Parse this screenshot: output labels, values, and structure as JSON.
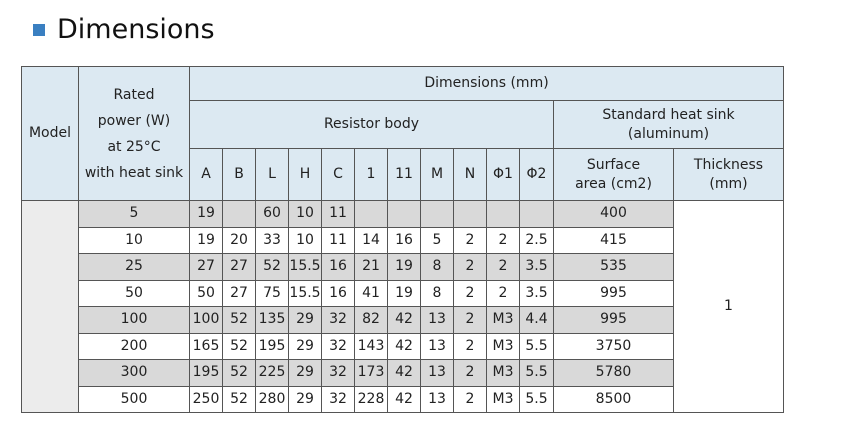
{
  "title": "Dimensions",
  "table": {
    "header": {
      "model": "Model",
      "rated_power": [
        "Rated",
        "power (W)",
        "at 25°C",
        "with heat sink"
      ],
      "dimensions": "Dimensions (mm)",
      "resistor_body": "Resistor body",
      "heat_sink": [
        "Standard heat sink",
        "(aluminum)"
      ],
      "columns": [
        "A",
        "B",
        "L",
        "H",
        "C",
        "1",
        "11",
        "M",
        "N",
        "Φ1",
        "Φ2"
      ],
      "surface_area": [
        "Surface",
        "area (cm2)"
      ],
      "thickness": [
        "Thickness",
        "(mm)"
      ]
    },
    "rows": [
      {
        "power": 5,
        "dims": [
          19,
          null,
          60,
          10,
          11,
          null,
          null,
          null,
          null,
          null,
          null
        ],
        "surface_area": 400
      },
      {
        "power": 10,
        "dims": [
          19,
          20,
          33,
          10,
          11,
          14,
          16,
          5,
          2,
          2,
          2.5
        ],
        "surface_area": 415
      },
      {
        "power": 25,
        "dims": [
          27,
          27,
          52,
          15.5,
          16,
          21,
          19,
          8,
          2,
          2,
          3.5
        ],
        "surface_area": 535
      },
      {
        "power": 50,
        "dims": [
          50,
          27,
          75,
          15.5,
          16,
          41,
          19,
          8,
          2,
          2,
          3.5
        ],
        "surface_area": 995
      },
      {
        "power": 100,
        "dims": [
          100,
          52,
          135,
          29,
          32,
          82,
          42,
          13,
          2,
          "M3",
          4.4
        ],
        "surface_area": 995
      },
      {
        "power": 200,
        "dims": [
          165,
          52,
          195,
          29,
          32,
          143,
          42,
          13,
          2,
          "M3",
          5.5
        ],
        "surface_area": 3750
      },
      {
        "power": 300,
        "dims": [
          195,
          52,
          225,
          29,
          32,
          173,
          42,
          13,
          2,
          "M3",
          5.5
        ],
        "surface_area": 5780
      },
      {
        "power": 500,
        "dims": [
          250,
          52,
          280,
          29,
          32,
          228,
          42,
          13,
          2,
          "M3",
          5.5
        ],
        "surface_area": 8500
      }
    ],
    "thickness_value": 1
  }
}
